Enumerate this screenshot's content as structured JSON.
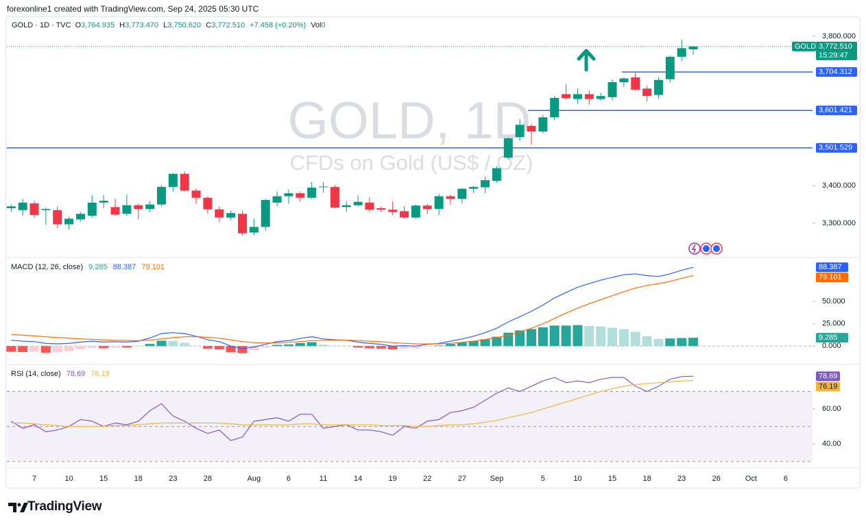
{
  "header": {
    "attribution": "forexonline1 created with TradingView.com, Sep 24, 2025 05:30 UTC",
    "symbol": "GOLD · 1D · TVC",
    "ohlc": [
      {
        "label": "O",
        "value": "3,764.935"
      },
      {
        "label": "H",
        "value": "3,773.470"
      },
      {
        "label": "L",
        "value": "3,750.620"
      },
      {
        "label": "C",
        "value": "3,772.510"
      }
    ],
    "change": "+7.458 (+0.20%)",
    "volume_label": "Vol",
    "volume": "0"
  },
  "footer": {
    "brand": "TradingView"
  },
  "chart_data": [
    {
      "type": "candlestick",
      "watermark": "GOLD, 1D",
      "subtitle": "CFDs on Gold (US$ / OZ)",
      "categories": [
        null,
        null,
        "7",
        null,
        null,
        "10",
        null,
        null,
        "15",
        null,
        null,
        "18",
        null,
        null,
        "23",
        null,
        null,
        "28",
        null,
        null,
        null,
        "Aug",
        null,
        null,
        "6",
        null,
        null,
        "11",
        null,
        null,
        "14",
        null,
        null,
        "19",
        null,
        null,
        "22",
        null,
        null,
        "27",
        null,
        null,
        "Sep",
        null,
        null,
        null,
        "5",
        null,
        null,
        "10",
        null,
        null,
        "15",
        null,
        null,
        "18",
        null,
        null,
        "23",
        null,
        null,
        "26",
        null,
        null,
        "Oct",
        null,
        null,
        "6",
        null,
        null
      ],
      "open": [
        3340,
        3335,
        3353,
        3335,
        3335,
        3297,
        3310,
        3320,
        3355,
        3343,
        3325,
        3348,
        3338,
        3350,
        3397,
        3432,
        3387,
        3368,
        3337,
        3315,
        3325,
        3275,
        3290,
        3355,
        3372,
        3380,
        3368,
        3397,
        3397,
        3343,
        3348,
        3355,
        3340,
        3336,
        3332,
        3315,
        3347,
        3338,
        3372,
        3365,
        3392,
        3396,
        3413,
        3475,
        3530,
        3560,
        3545,
        3583,
        3645,
        3632,
        3645,
        3632,
        3637,
        3677,
        3690,
        3660,
        3643,
        3685,
        3745,
        3764.935,
        null,
        null,
        null,
        null,
        null,
        null,
        null,
        null,
        null,
        null
      ],
      "high": [
        3350,
        3365,
        3360,
        3342,
        3345,
        3317,
        3330,
        3375,
        3375,
        3365,
        3377,
        3352,
        3360,
        3402,
        3434,
        3438,
        3393,
        3372,
        3345,
        3334,
        3333,
        3312,
        3365,
        3385,
        3390,
        3385,
        3410,
        3410,
        3402,
        3358,
        3375,
        3370,
        3345,
        3358,
        3346,
        3350,
        3352,
        3378,
        3376,
        3394,
        3400,
        3424,
        3453,
        3530,
        3578,
        3565,
        3590,
        3640,
        3672,
        3660,
        3655,
        3648,
        3685,
        3690,
        3705,
        3668,
        3690,
        3748,
        3791,
        3773.47,
        null,
        null,
        null,
        null,
        null,
        null,
        null,
        null,
        null,
        null
      ],
      "low": [
        3330,
        3320,
        3315,
        3296,
        3287,
        3283,
        3305,
        3315,
        3340,
        3320,
        3320,
        3310,
        3330,
        3345,
        3385,
        3385,
        3352,
        3325,
        3302,
        3308,
        3267,
        3268,
        3280,
        3345,
        3352,
        3357,
        3365,
        3382,
        3340,
        3330,
        3345,
        3330,
        3330,
        3322,
        3312,
        3312,
        3324,
        3322,
        3350,
        3352,
        3380,
        3380,
        3408,
        3470,
        3520,
        3510,
        3540,
        3575,
        3630,
        3620,
        3617,
        3628,
        3628,
        3665,
        3655,
        3625,
        3633,
        3676,
        3733,
        3750.62,
        null,
        null,
        null,
        null,
        null,
        null,
        null,
        null,
        null,
        null
      ],
      "close": [
        3345,
        3355,
        3322,
        3338,
        3297,
        3312,
        3325,
        3355,
        3360,
        3323,
        3348,
        3338,
        3350,
        3397,
        3432,
        3387,
        3368,
        3337,
        3315,
        3327,
        3273,
        3290,
        3362,
        3372,
        3380,
        3368,
        3395,
        3398,
        3342,
        3348,
        3357,
        3336,
        3336,
        3330,
        3315,
        3347,
        3338,
        3372,
        3365,
        3392,
        3397,
        3415,
        3447,
        3527,
        3563,
        3545,
        3583,
        3635,
        3634,
        3645,
        3632,
        3640,
        3677,
        3687,
        3657,
        3640,
        3683,
        3745,
        3768,
        3772.51,
        null,
        null,
        null,
        null,
        null,
        null,
        null,
        null,
        null,
        null
      ],
      "up_color": "#089981",
      "down_color": "#f23645",
      "ylim": [
        3210,
        3851
      ],
      "yticks": [
        {
          "value": 3300,
          "label": "3,300.000"
        },
        {
          "value": 3400,
          "label": "3,400.000"
        },
        {
          "value": 3800,
          "label": "3,800.000"
        }
      ],
      "grid": false,
      "hlines": [
        {
          "value": 3704.312,
          "label": "3,704.312"
        },
        {
          "value": 3601.421,
          "label": "3,601.421"
        },
        {
          "value": 3501.529,
          "label": "3,501.529"
        }
      ],
      "hline_color": "#2962ff",
      "last": {
        "symbol": "GOLD",
        "label": "3,772.510",
        "countdown": "15:29:47"
      }
    },
    {
      "type": "macd",
      "title": "MACD (12, 26, close)",
      "ylim": [
        -19,
        98.5
      ],
      "yticks": [
        {
          "value": 0,
          "label": "0.000"
        },
        {
          "value": 25,
          "label": "25.000"
        },
        {
          "value": 50,
          "label": "50.000"
        }
      ],
      "series": [
        {
          "style": "histogram",
          "color": "#26a69a",
          "color_light": "#b2dfdb",
          "down_color": "#ff5252",
          "down_color_light": "#ffcdd2",
          "values": [
            -6.5,
            -6.7,
            -6.4,
            -7.4,
            -7,
            -5.7,
            -3.5,
            -2,
            -2.5,
            -1.7,
            -1.7,
            -0.5,
            2.4,
            6,
            5.5,
            3.6,
            0.5,
            -2.8,
            -3.8,
            -7,
            -8,
            -4.8,
            -1.4,
            1.3,
            1.8,
            3.5,
            4.4,
            1.5,
            0.4,
            -0.1,
            -1.7,
            -2.5,
            -2.8,
            -3.8,
            -2.6,
            -2.5,
            -0.4,
            0.5,
            2.4,
            3.9,
            5.5,
            7.6,
            10.5,
            15,
            17.5,
            19,
            21,
            23,
            23,
            23.5,
            22.5,
            22,
            20.5,
            19,
            16,
            11,
            8,
            8.5,
            9,
            9.285,
            null,
            null,
            null,
            null,
            null,
            null,
            null,
            null,
            null,
            null
          ]
        },
        {
          "style": "line",
          "color": "#2962ff",
          "values": [
            6.5,
            5.5,
            5,
            3,
            2.5,
            3,
            4.5,
            5.5,
            4.5,
            4.8,
            4.5,
            5.5,
            9,
            14,
            15,
            14,
            11,
            7,
            5,
            0,
            -3,
            -1,
            2,
            5,
            6,
            8.5,
            10.5,
            8,
            7,
            6.5,
            4.5,
            3,
            2,
            0,
            0.5,
            0,
            2,
            3,
            5.5,
            8,
            11,
            15,
            20,
            27,
            33,
            39,
            46,
            54,
            60,
            66,
            70,
            74,
            77,
            80,
            81,
            79,
            78,
            81,
            85,
            88.387,
            null,
            null,
            null,
            null,
            null,
            null,
            null,
            null,
            null,
            null
          ]
        },
        {
          "style": "line",
          "color": "#ff6d00",
          "values": [
            13,
            12.2,
            11.4,
            10.4,
            9.5,
            8.7,
            8,
            7.5,
            7,
            6.5,
            6.2,
            6,
            6.6,
            8,
            9.5,
            10.4,
            10.5,
            9.8,
            8.8,
            7,
            5,
            3.8,
            3.4,
            3.7,
            4.2,
            5,
            6.1,
            6.5,
            6.6,
            6.6,
            6.2,
            5.5,
            4.8,
            3.8,
            3.1,
            2.5,
            2.4,
            2.5,
            3.1,
            4.1,
            5.5,
            7.4,
            9.5,
            12,
            15.5,
            20,
            25,
            31,
            37,
            42.5,
            47.5,
            52,
            56.5,
            61,
            65,
            68,
            70,
            72.5,
            76,
            79.101,
            null,
            null,
            null,
            null,
            null,
            null,
            null,
            null,
            null,
            null
          ]
        }
      ]
    },
    {
      "type": "rsi",
      "title": "RSI (14, close)",
      "ylim": [
        27.6,
        84.3
      ],
      "yticks": [
        {
          "value": 40,
          "label": "40.00"
        },
        {
          "value": 60,
          "label": "60.00"
        }
      ],
      "bands": [
        30,
        50,
        70
      ],
      "band_color": "#7e57c2",
      "series": [
        {
          "style": "line",
          "color": "#7e57c2",
          "values": [
            53,
            49,
            51,
            47,
            48,
            50,
            54,
            53,
            50,
            52,
            51,
            53,
            59,
            63,
            56,
            53,
            49,
            46,
            48,
            42,
            44,
            53,
            54,
            55,
            53,
            57,
            57,
            49,
            50,
            51,
            48,
            48,
            47,
            45,
            50,
            49,
            53,
            54,
            58,
            59,
            61,
            65,
            69,
            72,
            70,
            73,
            76,
            78,
            75,
            76,
            75,
            77,
            78,
            78,
            73,
            70,
            73,
            77,
            78.5,
            78.69,
            null,
            null,
            null,
            null,
            null,
            null,
            null,
            null,
            null,
            null
          ]
        },
        {
          "style": "line",
          "color": "#f2b53a",
          "values": [
            52,
            52,
            51.5,
            51,
            50.5,
            50,
            50,
            50,
            50,
            50.5,
            50.5,
            51,
            51.5,
            52,
            52,
            52,
            52,
            52,
            52,
            51.5,
            51,
            51,
            51,
            51,
            51,
            51.5,
            51.5,
            51,
            51,
            51,
            51,
            51,
            50.5,
            50.5,
            50.5,
            50,
            50,
            50.5,
            51,
            51,
            51.5,
            52.5,
            53.5,
            55,
            56.5,
            58,
            60,
            62,
            64,
            66,
            68,
            70,
            71.5,
            73,
            74,
            74.5,
            75,
            75.5,
            76,
            76.19,
            null,
            null,
            null,
            null,
            null,
            null,
            null,
            null,
            null,
            null
          ]
        }
      ]
    }
  ]
}
